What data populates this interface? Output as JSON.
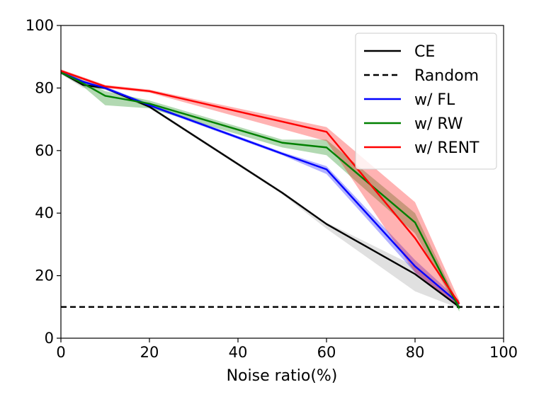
{
  "chart_data": {
    "type": "line",
    "title": "",
    "xlabel": "Noise ratio(%)",
    "ylabel": "",
    "xlim": [
      0,
      100
    ],
    "ylim": [
      0,
      100
    ],
    "xticks": [
      0,
      20,
      40,
      60,
      80,
      100
    ],
    "yticks": [
      0,
      20,
      40,
      60,
      80,
      100
    ],
    "grid": false,
    "legend_position": "top-right",
    "series": [
      {
        "name": "CE",
        "color": "#000000",
        "style": "solid",
        "x": [
          0,
          5,
          10,
          20,
          50,
          60,
          80,
          90
        ],
        "y": [
          85,
          81,
          80,
          74,
          46.5,
          36.5,
          20.5,
          10
        ],
        "lower": [
          84.5,
          80,
          79.5,
          73.5,
          46,
          35,
          15,
          9.5
        ],
        "upper": [
          85.5,
          82,
          80.5,
          74.5,
          47,
          37,
          23,
          10.5
        ]
      },
      {
        "name": "Random",
        "color": "#000000",
        "style": "dashed",
        "x": [
          0,
          100
        ],
        "y": [
          10,
          10
        ]
      },
      {
        "name": "w/ FL",
        "color": "#0000ff",
        "style": "solid",
        "x": [
          0,
          5,
          10,
          20,
          50,
          60,
          80,
          90
        ],
        "y": [
          85,
          82,
          80,
          74.5,
          59,
          54,
          23,
          11
        ],
        "lower": [
          84.5,
          81.5,
          79.5,
          74,
          58.5,
          52.5,
          21,
          10
        ],
        "upper": [
          85.5,
          82.5,
          80.5,
          75,
          59.5,
          55,
          25,
          12
        ]
      },
      {
        "name": "w/ RW",
        "color": "#008000",
        "style": "solid",
        "x": [
          0,
          5,
          10,
          20,
          50,
          60,
          80,
          90
        ],
        "y": [
          85,
          81.5,
          77.5,
          75,
          62.5,
          61,
          37,
          9.5
        ],
        "lower": [
          84.5,
          80.5,
          74.5,
          73.5,
          61,
          58.5,
          33.5,
          8.5
        ],
        "upper": [
          85.5,
          82.5,
          79,
          76,
          63.5,
          63.5,
          40,
          10.5
        ]
      },
      {
        "name": "w/ RENT",
        "color": "#ff0000",
        "style": "solid",
        "x": [
          0,
          10,
          20,
          60,
          80,
          90
        ],
        "y": [
          85.5,
          80.5,
          79,
          66,
          32,
          11
        ],
        "lower": [
          85,
          80,
          78.5,
          63,
          21,
          10
        ],
        "upper": [
          86,
          81,
          79.5,
          67.5,
          43.5,
          12
        ]
      }
    ]
  }
}
